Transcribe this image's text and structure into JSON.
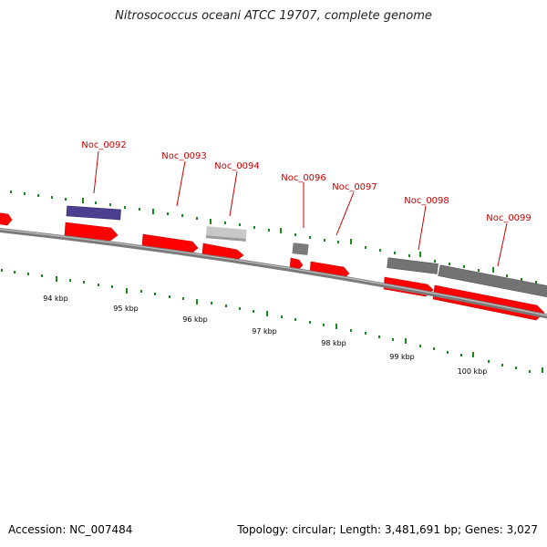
{
  "title": "Nitrosococcus oceani ATCC 19707, complete genome",
  "footer": {
    "accession": "Accession: NC_007484",
    "summary": "Topology: circular; Length: 3,481,691 bp; Genes: 3,027"
  },
  "colors": {
    "backbone": "#8a8a8a",
    "cds_red": "#ff0000",
    "cds_purple": "#4b3f8f",
    "cds_gray": "#7a7a7a",
    "cds_light_gray": "#c8c8c8",
    "tick_green": "#1a8a1a",
    "label_red": "#cc0000"
  },
  "scale_labels": [
    "94 kbp",
    "95 kbp",
    "96 kbp",
    "97 kbp",
    "98 kbp",
    "99 kbp",
    "100 kbp"
  ],
  "gene_labels": [
    "Noc_0092",
    "Noc_0093",
    "Noc_0094",
    "Noc_0096",
    "Noc_0097",
    "Noc_0098",
    "Noc_0099"
  ]
}
